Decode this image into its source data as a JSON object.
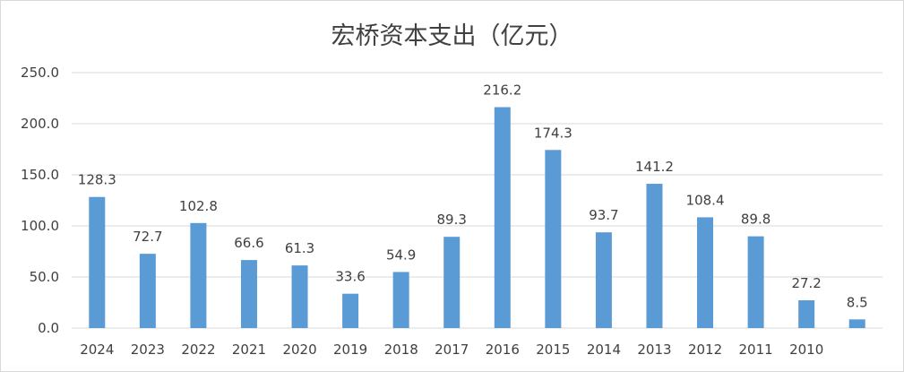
{
  "chart_data": {
    "type": "bar",
    "title": "宏桥资本支出（亿元）",
    "categories": [
      "2024",
      "2023",
      "2022",
      "2021",
      "2020",
      "2019",
      "2018",
      "2017",
      "2016",
      "2015",
      "2014",
      "2013",
      "2012",
      "2011",
      "2010",
      ""
    ],
    "values": [
      128.3,
      72.7,
      102.8,
      66.6,
      61.3,
      33.6,
      54.9,
      89.3,
      216.2,
      174.3,
      93.7,
      141.2,
      108.4,
      89.8,
      27.2,
      8.5
    ],
    "data_labels": [
      "128.3",
      "72.7",
      "102.8",
      "66.6",
      "61.3",
      "33.6",
      "54.9",
      "89.3",
      "216.2",
      "174.3",
      "93.7",
      "141.2",
      "108.4",
      "89.8",
      "27.2",
      "8.5"
    ],
    "y_ticks": [
      "0.0",
      "50.0",
      "100.0",
      "150.0",
      "200.0",
      "250.0"
    ],
    "ylim": [
      0,
      250
    ],
    "xlabel": "",
    "ylabel": "",
    "grid": true,
    "legend": "none",
    "bar_color": "#5b9bd5",
    "grid_color": "#d9d9d9"
  }
}
